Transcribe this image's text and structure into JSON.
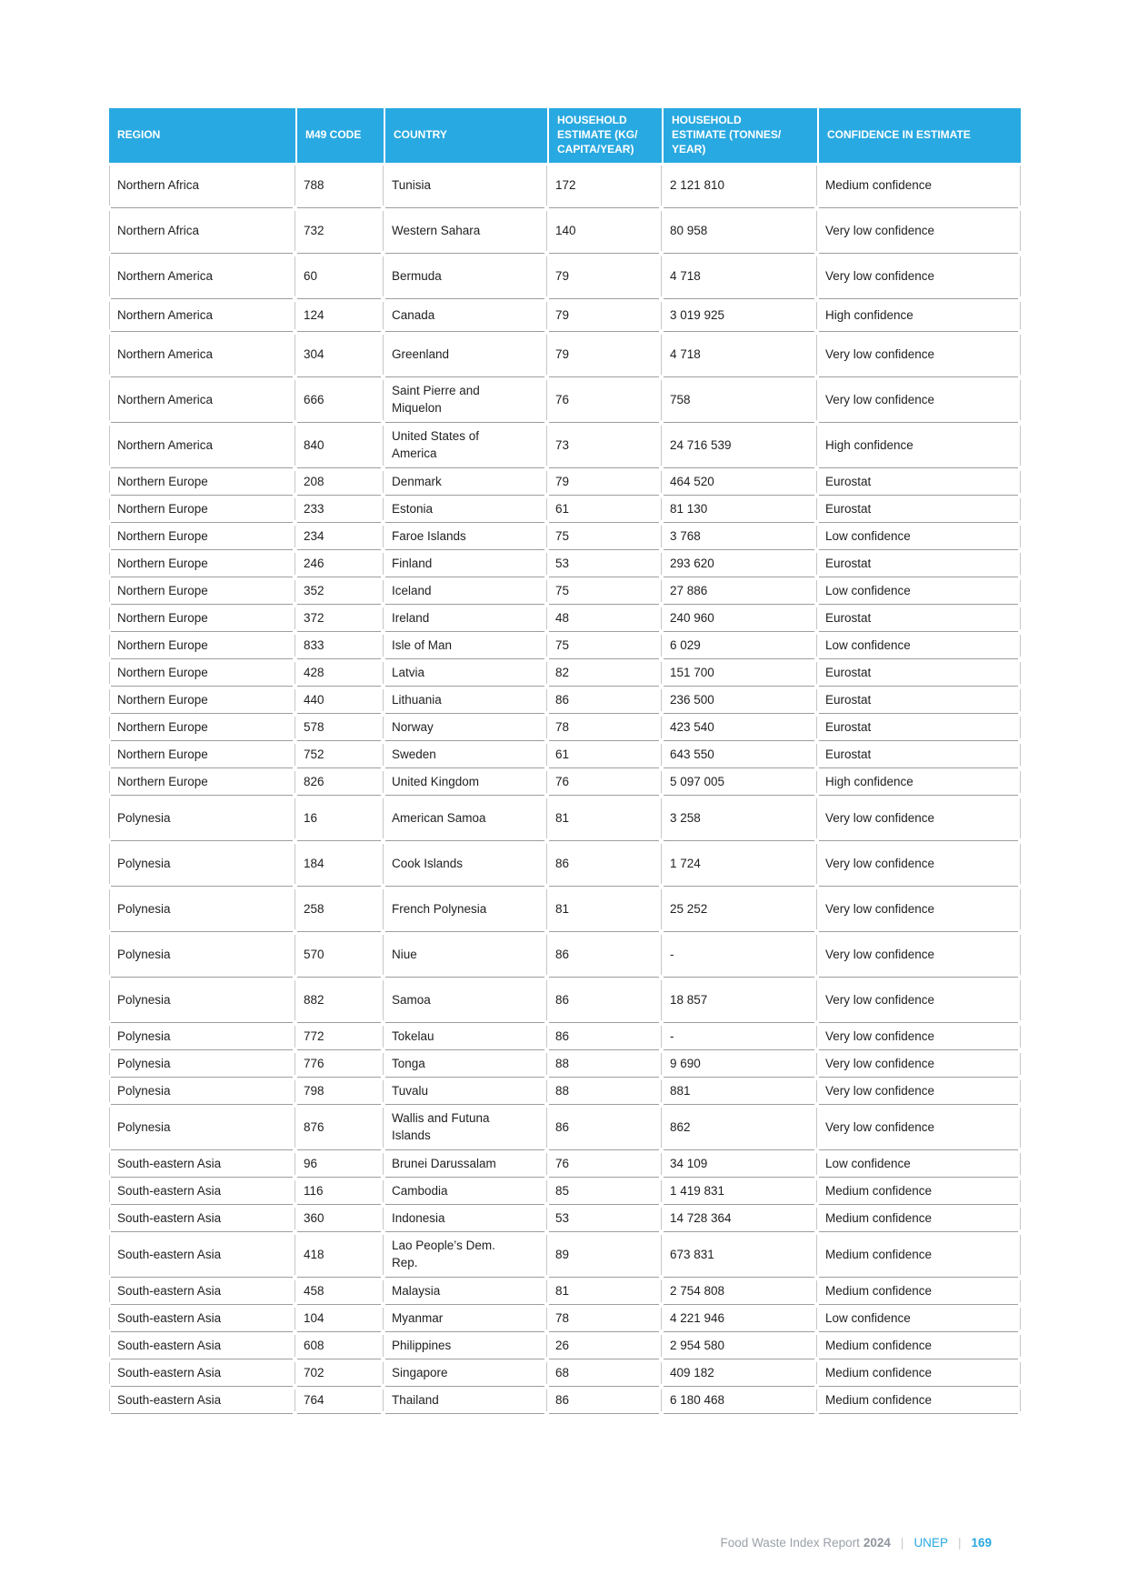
{
  "colors": {
    "header_bg": "#29a9e1",
    "accent_blue": "#2aa9e1"
  },
  "table": {
    "columns": [
      {
        "key": "region",
        "label": "REGION"
      },
      {
        "key": "m49",
        "label": "M49 CODE"
      },
      {
        "key": "country",
        "label": "COUNTRY"
      },
      {
        "key": "kg",
        "label": "HOUSEHOLD\nESTIMATE (KG/\nCAPITA/YEAR)"
      },
      {
        "key": "tonnes",
        "label": "HOUSEHOLD\nESTIMATE (TONNES/\nYEAR)"
      },
      {
        "key": "confidence",
        "label": "CONFIDENCE IN ESTIMATE"
      }
    ],
    "rows": [
      [
        "Northern Africa",
        "788",
        "Tunisia",
        "172",
        "2 121 810",
        "Medium confidence"
      ],
      [
        "Northern Africa",
        "732",
        "Western Sahara",
        "140",
        "80 958",
        "Very low confidence"
      ],
      [
        "Northern America",
        "60",
        "Bermuda",
        "79",
        "4 718",
        "Very low confidence"
      ],
      [
        "Northern America",
        "124",
        "Canada",
        "79",
        "3 019 925",
        "High confidence"
      ],
      [
        "Northern America",
        "304",
        "Greenland",
        "79",
        "4 718",
        "Very low confidence"
      ],
      [
        "Northern America",
        "666",
        "Saint Pierre and Miquelon",
        "76",
        "758",
        "Very low confidence"
      ],
      [
        "Northern America",
        "840",
        "United States of America",
        "73",
        "24 716 539",
        "High confidence"
      ],
      [
        "Northern Europe",
        "208",
        "Denmark",
        "79",
        "464 520",
        "Eurostat"
      ],
      [
        "Northern Europe",
        "233",
        "Estonia",
        "61",
        "81 130",
        "Eurostat"
      ],
      [
        "Northern Europe",
        "234",
        "Faroe Islands",
        "75",
        "3 768",
        "Low confidence"
      ],
      [
        "Northern Europe",
        "246",
        "Finland",
        "53",
        "293 620",
        "Eurostat"
      ],
      [
        "Northern Europe",
        "352",
        "Iceland",
        "75",
        "27 886",
        "Low confidence"
      ],
      [
        "Northern Europe",
        "372",
        "Ireland",
        "48",
        "240 960",
        "Eurostat"
      ],
      [
        "Northern Europe",
        "833",
        "Isle of Man",
        "75",
        "6 029",
        "Low confidence"
      ],
      [
        "Northern Europe",
        "428",
        "Latvia",
        "82",
        "151 700",
        "Eurostat"
      ],
      [
        "Northern Europe",
        "440",
        "Lithuania",
        "86",
        "236 500",
        "Eurostat"
      ],
      [
        "Northern Europe",
        "578",
        "Norway",
        "78",
        "423 540",
        "Eurostat"
      ],
      [
        "Northern Europe",
        "752",
        "Sweden",
        "61",
        "643 550",
        "Eurostat"
      ],
      [
        "Northern Europe",
        "826",
        "United Kingdom",
        "76",
        "5 097 005",
        "High confidence"
      ],
      [
        "Polynesia",
        "16",
        "American Samoa",
        "81",
        "3 258",
        "Very low confidence"
      ],
      [
        "Polynesia",
        "184",
        "Cook Islands",
        "86",
        "1 724",
        "Very low confidence"
      ],
      [
        "Polynesia",
        "258",
        "French Polynesia",
        "81",
        "25 252",
        "Very low confidence"
      ],
      [
        "Polynesia",
        "570",
        "Niue",
        "86",
        "-",
        "Very low confidence"
      ],
      [
        "Polynesia",
        "882",
        "Samoa",
        "86",
        "18 857",
        "Very low confidence"
      ],
      [
        "Polynesia",
        "772",
        "Tokelau",
        "86",
        "-",
        "Very low confidence"
      ],
      [
        "Polynesia",
        "776",
        "Tonga",
        "88",
        "9 690",
        "Very low confidence"
      ],
      [
        "Polynesia",
        "798",
        "Tuvalu",
        "88",
        "881",
        "Very low confidence"
      ],
      [
        "Polynesia",
        "876",
        "Wallis and Futuna Islands",
        "86",
        "862",
        "Very low confidence"
      ],
      [
        "South-eastern Asia",
        "96",
        "Brunei Darussalam",
        "76",
        "34 109",
        "Low confidence"
      ],
      [
        "South-eastern Asia",
        "116",
        "Cambodia",
        "85",
        "1 419 831",
        "Medium confidence"
      ],
      [
        "South-eastern Asia",
        "360",
        "Indonesia",
        "53",
        "14 728 364",
        "Medium confidence"
      ],
      [
        "South-eastern Asia",
        "418",
        "Lao People’s Dem. Rep.",
        "89",
        "673 831",
        "Medium confidence"
      ],
      [
        "South-eastern Asia",
        "458",
        "Malaysia",
        "81",
        "2 754 808",
        "Medium confidence"
      ],
      [
        "South-eastern Asia",
        "104",
        "Myanmar",
        "78",
        "4 221 946",
        "Low confidence"
      ],
      [
        "South-eastern Asia",
        "608",
        "Philippines",
        "26",
        "2 954 580",
        "Medium confidence"
      ],
      [
        "South-eastern Asia",
        "702",
        "Singapore",
        "68",
        "409 182",
        "Medium confidence"
      ],
      [
        "South-eastern Asia",
        "764",
        "Thailand",
        "86",
        "6 180 468",
        "Medium confidence"
      ]
    ]
  },
  "footer": {
    "report_title": "Food Waste Index Report",
    "report_year": "2024",
    "separator": "|",
    "org": "UNEP",
    "page_number": "169"
  }
}
